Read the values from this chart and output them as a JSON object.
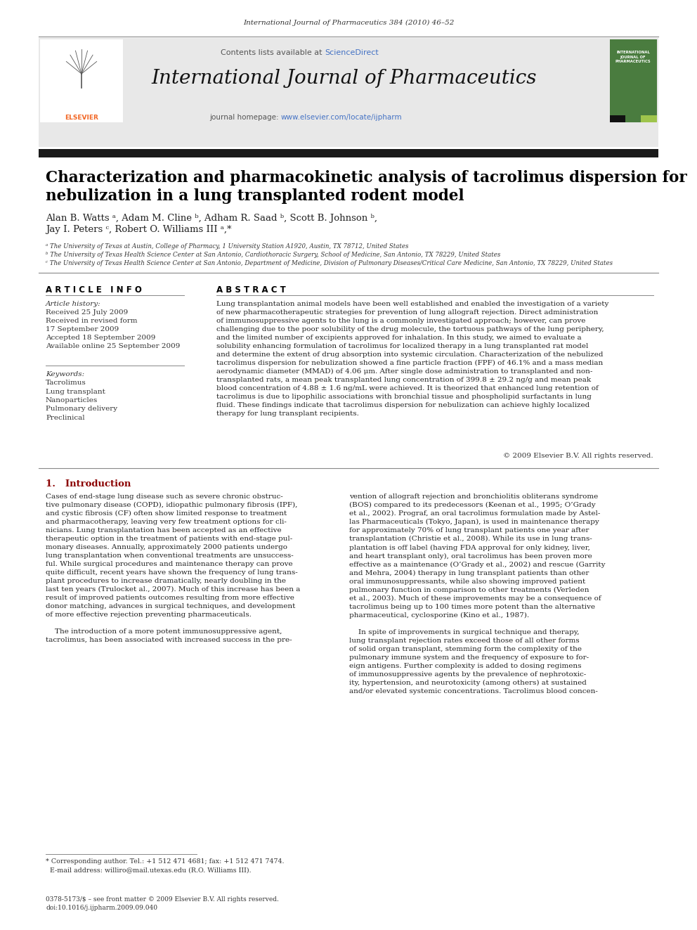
{
  "page_header": "International Journal of Pharmaceutics 384 (2010) 46–52",
  "journal_name": "International Journal of Pharmaceutics",
  "contents_line": "Contents lists available at ScienceDirect",
  "journal_homepage": "journal homepage: www.elsevier.com/locate/ijpharm",
  "article_title_line1": "Characterization and pharmacokinetic analysis of tacrolimus dispersion for",
  "article_title_line2": "nebulization in a lung transplanted rodent model",
  "authors": "Alan B. Watts ᵃ, Adam M. Cline ᵇ, Adham R. Saad ᵇ, Scott B. Johnson ᵇ,",
  "authors2": "Jay I. Peters ᶜ, Robert O. Williams III ᵃ,*",
  "affil_a": "ᵃ The University of Texas at Austin, College of Pharmacy, 1 University Station A1920, Austin, TX 78712, United States",
  "affil_b": "ᵇ The University of Texas Health Science Center at San Antonio, Cardiothoracic Surgery, School of Medicine, San Antonio, TX 78229, United States",
  "affil_c": "ᶜ The University of Texas Health Science Center at San Antonio, Department of Medicine, Division of Pulmonary Diseases/Critical Care Medicine, San Antonio, TX 78229, United States",
  "article_info_header": "A R T I C L E   I N F O",
  "article_history_label": "Article history:",
  "article_history": "Received 25 July 2009\nReceived in revised form\n17 September 2009\nAccepted 18 September 2009\nAvailable online 25 September 2009",
  "keywords_label": "Keywords:",
  "keywords": "Tacrolimus\nLung transplant\nNanoparticles\nPulmonary delivery\nPreclinical",
  "abstract_header": "A B S T R A C T",
  "abstract_text": "Lung transplantation animal models have been well established and enabled the investigation of a variety\nof new pharmacotherapeutic strategies for prevention of lung allograft rejection. Direct administration\nof immunosuppressive agents to the lung is a commonly investigated approach; however, can prove\nchallenging due to the poor solubility of the drug molecule, the tortuous pathways of the lung periphery,\nand the limited number of excipients approved for inhalation. In this study, we aimed to evaluate a\nsolubility enhancing formulation of tacrolimus for localized therapy in a lung transplanted rat model\nand determine the extent of drug absorption into systemic circulation. Characterization of the nebulized\ntacrolimus dispersion for nebulization showed a fine particle fraction (FPF) of 46.1% and a mass median\naerodynamic diameter (MMAD) of 4.06 μm. After single dose administration to transplanted and non-\ntransplanted rats, a mean peak transplanted lung concentration of 399.8 ± 29.2 ng/g and mean peak\nblood concentration of 4.88 ± 1.6 ng/mL were achieved. It is theorized that enhanced lung retention of\ntacrolimus is due to lipophilic associations with bronchial tissue and phospholipid surfactants in lung\nfluid. These findings indicate that tacrolimus dispersion for nebulization can achieve highly localized\ntherapy for lung transplant recipients.",
  "copyright_line": "© 2009 Elsevier B.V. All rights reserved.",
  "intro_header": "1.   Introduction",
  "intro_text_col1": "Cases of end-stage lung disease such as severe chronic obstruc-\ntive pulmonary disease (COPD), idiopathic pulmonary fibrosis (IPF),\nand cystic fibrosis (CF) often show limited response to treatment\nand pharmacotherapy, leaving very few treatment options for cli-\nnicians. Lung transplantation has been accepted as an effective\ntherapeutic option in the treatment of patients with end-stage pul-\nmonary diseases. Annually, approximately 2000 patients undergo\nlung transplantation when conventional treatments are unsuccess-\nful. While surgical procedures and maintenance therapy can prove\nquite difficult, recent years have shown the frequency of lung trans-\nplant procedures to increase dramatically, nearly doubling in the\nlast ten years (Trulocket al., 2007). Much of this increase has been a\nresult of improved patients outcomes resulting from more effective\ndonor matching, advances in surgical techniques, and development\nof more effective rejection preventing pharmaceuticals.\n\n    The introduction of a more potent immunosuppressive agent,\ntacrolimus, has been associated with increased success in the pre-",
  "intro_text_col2": "vention of allograft rejection and bronchiolitis obliterans syndrome\n(BOS) compared to its predecessors (Keenan et al., 1995; O’Grady\net al., 2002). Prograf, an oral tacrolimus formulation made by Astel-\nlas Pharmaceuticals (Tokyo, Japan), is used in maintenance therapy\nfor approximately 70% of lung transplant patients one year after\ntransplantation (Christie et al., 2008). While its use in lung trans-\nplantation is off label (having FDA approval for only kidney, liver,\nand heart transplant only), oral tacrolimus has been proven more\neffective as a maintenance (O’Grady et al., 2002) and rescue (Garrity\nand Mehra, 2004) therapy in lung transplant patients than other\noral immunosuppressants, while also showing improved patient\npulmonary function in comparison to other treatments (Verleden\net al., 2003). Much of these improvements may be a consequence of\ntacrolimus being up to 100 times more potent than the alternative\npharmaceutical, cyclosporine (Kino et al., 1987).\n\n    In spite of improvements in surgical technique and therapy,\nlung transplant rejection rates exceed those of all other forms\nof solid organ transplant, stemming form the complexity of the\npulmonary immune system and the frequency of exposure to for-\neign antigens. Further complexity is added to dosing regimens\nof immunosuppressive agents by the prevalence of nephrotoxic-\nity, hypertension, and neurotoxicity (among others) at sustained\nand/or elevated systemic concentrations. Tacrolimus blood concen-",
  "footnote_line1": "* Corresponding author. Tel.: +1 512 471 4681; fax: +1 512 471 7474.",
  "footnote_line2": "  E-mail address: williro@mail.utexas.edu (R.O. Williams III).",
  "footer_line1": "0378-5173/$ – see front matter © 2009 Elsevier B.V. All rights reserved.",
  "footer_line2": "doi:10.1016/j.ijpharm.2009.09.040",
  "bg_color": "#ffffff",
  "header_bg": "#e8e8e8",
  "black_bar_color": "#1a1a1a",
  "elsevier_orange": "#f26522",
  "science_direct_blue": "#4472c4",
  "cover_green": "#4a7c3f",
  "cover_light_green": "#9ec44c"
}
